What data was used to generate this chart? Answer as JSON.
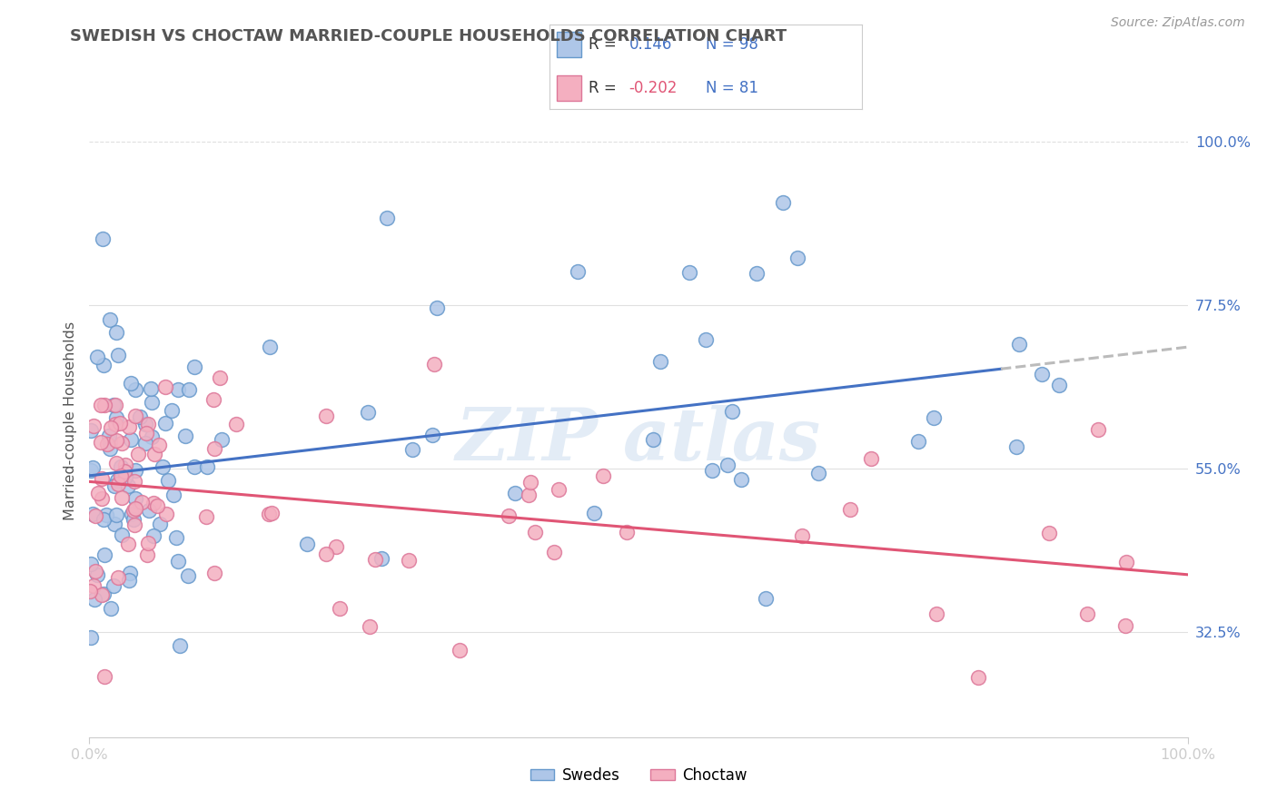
{
  "title": "SWEDISH VS CHOCTAW MARRIED-COUPLE HOUSEHOLDS CORRELATION CHART",
  "source": "Source: ZipAtlas.com",
  "ylabel": "Married-couple Households",
  "xlim": [
    0.0,
    1.0
  ],
  "ylim": [
    0.18,
    1.05
  ],
  "ytick_vals": [
    0.325,
    0.55,
    0.775,
    1.0
  ],
  "ytick_labels": [
    "32.5%",
    "55.0%",
    "77.5%",
    "100.0%"
  ],
  "r1": "0.146",
  "n1": "98",
  "r2": "-0.202",
  "n2": "81",
  "swedes_face": "#aec6e8",
  "swedes_edge": "#6699cc",
  "choctaw_face": "#f4afc0",
  "choctaw_edge": "#dd7799",
  "swedes_line": "#4472c4",
  "choctaw_line": "#e05575",
  "dashed_line": "#bbbbbb",
  "watermark": "#ccddef",
  "bg": "#ffffff",
  "grid_color": "#e0e0e0",
  "title_color": "#555555",
  "rval_color": "#4472c4",
  "r2val_color": "#e05575",
  "label_color": "#555555",
  "source_color": "#999999"
}
